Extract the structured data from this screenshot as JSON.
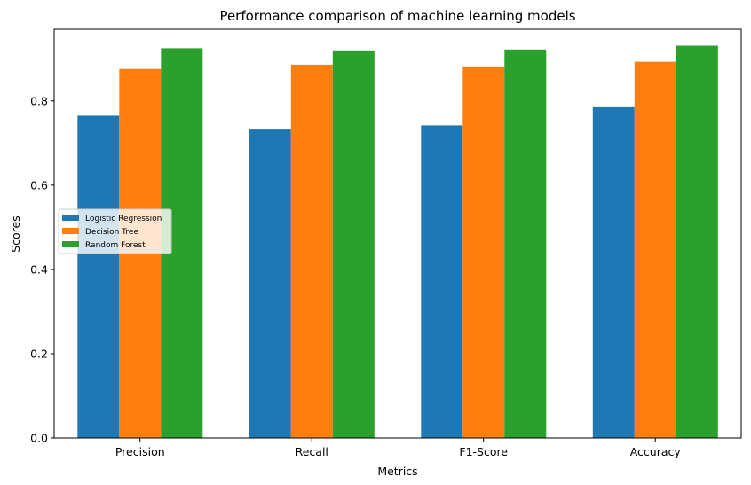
{
  "chart_data": {
    "type": "bar",
    "title": "Performance comparison of machine learning models",
    "xlabel": "Metrics",
    "ylabel": "Scores",
    "categories": [
      "Precision",
      "Recall",
      "F1-Score",
      "Accuracy"
    ],
    "series": [
      {
        "name": "Logistic Regression",
        "color": "#1f77b4",
        "values": [
          0.765,
          0.732,
          0.742,
          0.785
        ]
      },
      {
        "name": "Decision Tree",
        "color": "#ff7f0e",
        "values": [
          0.876,
          0.886,
          0.88,
          0.893
        ]
      },
      {
        "name": "Random Forest",
        "color": "#2ca02c",
        "values": [
          0.925,
          0.92,
          0.922,
          0.931
        ]
      }
    ],
    "ylim": [
      0,
      0.97
    ],
    "yticks": [
      "0.0",
      "0.2",
      "0.4",
      "0.6",
      "0.8"
    ],
    "grid": false,
    "legend_position": "center-left"
  }
}
